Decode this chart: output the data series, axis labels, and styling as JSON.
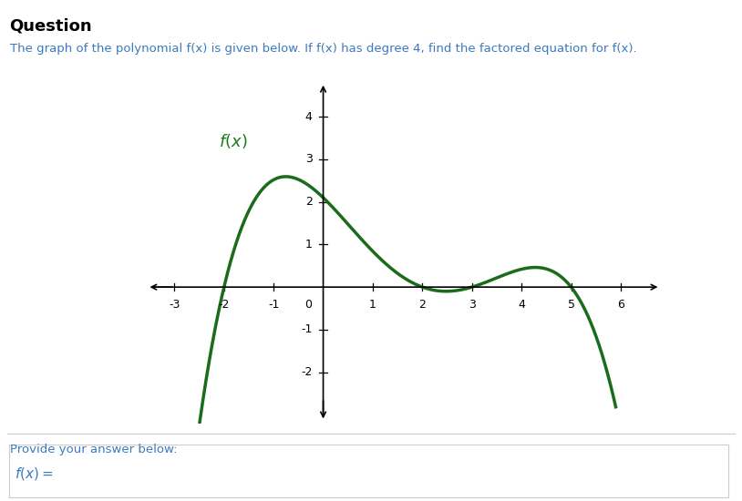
{
  "title_text": "Question",
  "subtitle": "The graph of the polynomial f(x) is given below. If f(x) has degree 4, find the factored equation for f(x).",
  "ylabel_label": "f(x)",
  "ylabel_color": "#1a7a1a",
  "curve_color": "#1a6b1a",
  "curve_linewidth": 2.5,
  "xlim": [
    -3.6,
    6.8
  ],
  "ylim": [
    -3.2,
    4.8
  ],
  "xticks": [
    -3,
    -2,
    -1,
    1,
    2,
    3,
    4,
    5,
    6
  ],
  "yticks": [
    -2,
    -1,
    1,
    2,
    3,
    4
  ],
  "background_color": "#ffffff",
  "provide_text": "Provide your answer below:",
  "text_color": "#3a7abf",
  "bold_title_color": "#000000",
  "roots": [
    -2,
    2,
    3,
    5
  ],
  "scale": 0.035
}
